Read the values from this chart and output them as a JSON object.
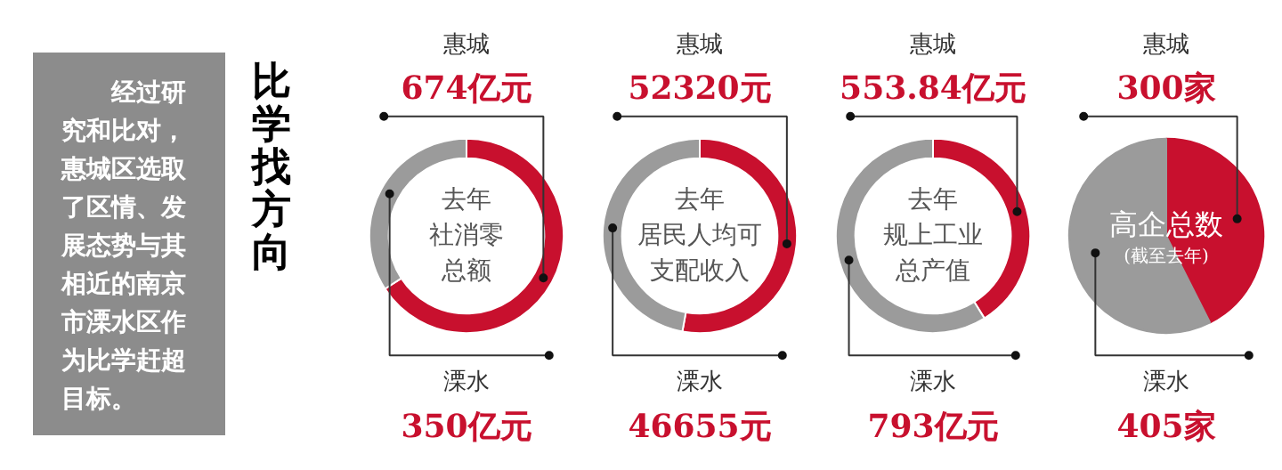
{
  "chart_data": [
    {
      "type": "other",
      "title": "比学找方向",
      "annotations": [
        "经过研究和比对，惠城区选取了区情、发展态势与其相近的南京市溧水区作为比学赶超目标。"
      ]
    },
    {
      "type": "donut",
      "title": "去年社消零总额",
      "categories": [
        "惠城",
        "溧水"
      ],
      "values": [
        674,
        350
      ],
      "colors": [
        "#c8102e",
        "#9b9b9b"
      ],
      "value_labels": [
        "674亿元",
        "350亿元"
      ]
    },
    {
      "type": "donut",
      "title": "去年居民人均可支配收入",
      "categories": [
        "惠城",
        "溧水"
      ],
      "values": [
        52320,
        46655
      ],
      "colors": [
        "#c8102e",
        "#9b9b9b"
      ],
      "value_labels": [
        "52320元",
        "46655元"
      ]
    },
    {
      "type": "donut",
      "title": "去年规上工业总产值",
      "categories": [
        "惠城",
        "溧水"
      ],
      "values": [
        553.84,
        793
      ],
      "colors": [
        "#c8102e",
        "#9b9b9b"
      ],
      "value_labels": [
        "553.84亿元",
        "793亿元"
      ]
    },
    {
      "type": "pie",
      "title": "高企总数",
      "subtitle": "(截至去年)",
      "categories": [
        "惠城",
        "溧水"
      ],
      "values": [
        300,
        405
      ],
      "colors": [
        "#c8102e",
        "#9b9b9b"
      ],
      "value_labels": [
        "300家",
        "405家"
      ]
    }
  ]
}
